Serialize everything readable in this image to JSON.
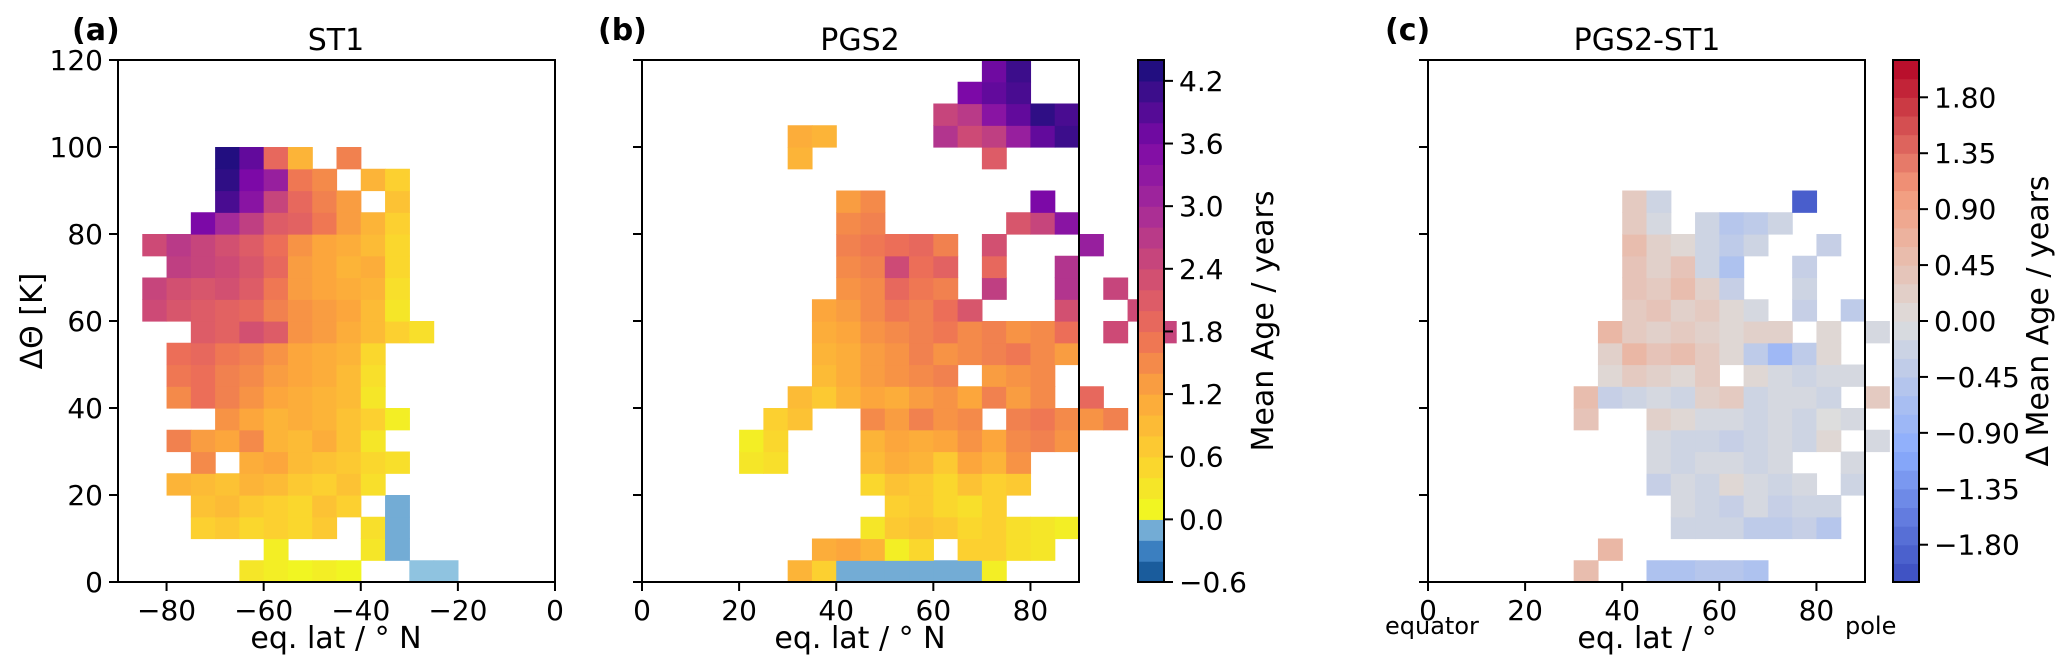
{
  "chart_data": [
    {
      "type": "heatmap",
      "panel_label": "(a)",
      "title": "ST1",
      "xlabel": "eq. lat / ° N",
      "ylabel": "ΔΘ [K]",
      "xlim": [
        -90,
        0
      ],
      "ylim": [
        0,
        120
      ],
      "xticks": [
        -80,
        -60,
        -40,
        -20,
        0
      ],
      "xtick_labels": [
        "−80",
        "−60",
        "−40",
        "−20",
        "0"
      ],
      "yticks": [
        0,
        20,
        40,
        60,
        80,
        100,
        120
      ],
      "ytick_labels": [
        "0",
        "20",
        "40",
        "60",
        "80",
        "100",
        "120"
      ],
      "cell_size": [
        5,
        5
      ],
      "rows": [
        {
          "y": 0,
          "x0": -65,
          "values": [
            0.3,
            0.2,
            0.1,
            0.2,
            0.1,
            null,
            null,
            0.0,
            0.0
          ]
        },
        {
          "y": 5,
          "x0": -60,
          "values": [
            0.2,
            null,
            null,
            null,
            0.3,
            -0.1
          ]
        },
        {
          "y": 10,
          "x0": -75,
          "values": [
            0.6,
            0.7,
            0.5,
            0.6,
            0.5,
            0.7,
            null,
            0.4,
            -0.1
          ]
        },
        {
          "y": 15,
          "x0": -75,
          "values": [
            0.8,
            0.9,
            0.7,
            0.6,
            0.5,
            0.8,
            0.6,
            null,
            -0.1
          ]
        },
        {
          "y": 20,
          "x0": -80,
          "values": [
            1.0,
            0.9,
            0.8,
            1.0,
            0.9,
            0.7,
            0.6,
            0.8,
            0.4
          ]
        },
        {
          "y": 25,
          "x0": -75,
          "values": [
            1.5,
            null,
            1.1,
            1.2,
            0.9,
            0.8,
            0.7,
            0.5,
            0.4
          ]
        },
        {
          "y": 30,
          "x0": -80,
          "values": [
            1.6,
            1.3,
            1.2,
            1.5,
            1.0,
            0.9,
            1.1,
            0.8,
            0.3
          ]
        },
        {
          "y": 35,
          "x0": -75,
          "values": [
            null,
            1.4,
            1.2,
            1.0,
            1.1,
            1.0,
            0.8,
            0.6,
            0.2
          ]
        },
        {
          "y": 40,
          "x0": -80,
          "values": [
            1.5,
            1.8,
            1.6,
            1.4,
            1.2,
            1.1,
            1.0,
            0.9,
            0.3
          ]
        },
        {
          "y": 45,
          "x0": -80,
          "values": [
            1.7,
            1.8,
            1.6,
            1.5,
            1.3,
            1.2,
            1.1,
            0.9,
            0.4
          ]
        },
        {
          "y": 50,
          "x0": -80,
          "values": [
            1.8,
            1.9,
            1.7,
            1.6,
            1.4,
            1.2,
            1.1,
            1.0,
            0.5
          ]
        },
        {
          "y": 55,
          "x0": -75,
          "values": [
            2.1,
            2.0,
            2.3,
            2.1,
            1.4,
            1.3,
            1.1,
            0.9,
            0.6,
            0.4
          ]
        },
        {
          "y": 60,
          "x0": -85,
          "values": [
            2.4,
            2.2,
            2.1,
            2.0,
            1.9,
            1.6,
            1.4,
            1.3,
            1.2,
            0.9,
            0.3
          ]
        },
        {
          "y": 65,
          "x0": -85,
          "values": [
            2.5,
            2.3,
            2.2,
            2.3,
            2.1,
            1.7,
            1.3,
            1.2,
            1.1,
            1.0,
            0.4
          ]
        },
        {
          "y": 70,
          "x0": -80,
          "values": [
            2.6,
            2.5,
            2.4,
            2.2,
            1.9,
            1.3,
            1.2,
            1.0,
            1.1,
            0.5
          ]
        },
        {
          "y": 75,
          "x0": -85,
          "values": [
            2.4,
            2.7,
            2.5,
            2.3,
            2.1,
            1.8,
            1.4,
            1.2,
            1.1,
            0.9,
            0.5
          ]
        },
        {
          "y": 80,
          "x0": -75,
          "values": [
            3.6,
            3.0,
            2.6,
            2.1,
            2.0,
            1.7,
            1.3,
            1.0,
            0.6
          ]
        },
        {
          "y": 85,
          "x0": -70,
          "values": [
            4.0,
            3.4,
            2.5,
            1.9,
            1.6,
            1.3,
            null,
            0.8
          ]
        },
        {
          "y": 90,
          "x0": -70,
          "values": [
            4.2,
            3.6,
            3.2,
            1.7,
            1.5,
            null,
            1.0,
            0.6
          ]
        },
        {
          "y": 95,
          "x0": -70,
          "values": [
            4.3,
            3.8,
            1.9,
            1.0,
            null,
            1.6
          ]
        }
      ]
    },
    {
      "type": "heatmap",
      "panel_label": "(b)",
      "title": "PGS2",
      "xlabel": "eq. lat / ° N",
      "xlim": [
        0,
        90
      ],
      "ylim": [
        0,
        120
      ],
      "xticks": [
        0,
        20,
        40,
        60,
        80
      ],
      "xtick_labels": [
        "0",
        "20",
        "40",
        "60",
        "80"
      ],
      "yticks": [
        0,
        20,
        40,
        60,
        80,
        100,
        120
      ],
      "cell_size": [
        5,
        5
      ],
      "rows": [
        {
          "y": 0,
          "x0": 30,
          "values": [
            1.0,
            0.6,
            -0.1,
            -0.1,
            -0.1,
            -0.1,
            -0.1,
            -0.1,
            0.2
          ]
        },
        {
          "y": 5,
          "x0": 35,
          "values": [
            1.1,
            1.2,
            1.0,
            0.2,
            0.5,
            null,
            0.6,
            0.6,
            0.4,
            0.3
          ]
        },
        {
          "y": 10,
          "x0": 45,
          "values": [
            0.3,
            0.7,
            0.8,
            0.7,
            0.5,
            0.6,
            0.4,
            0.3,
            0.2
          ]
        },
        {
          "y": 15,
          "x0": 50,
          "values": [
            0.6,
            0.7,
            0.5,
            0.4,
            0.6
          ]
        },
        {
          "y": 20,
          "x0": 45,
          "values": [
            0.5,
            0.8,
            0.7,
            0.5,
            0.8,
            0.6,
            0.7
          ]
        },
        {
          "y": 25,
          "x0": 20,
          "values": [
            0.3,
            0.4,
            null,
            null,
            null,
            0.9,
            1.1,
            1.0,
            0.7,
            1.2,
            1.0,
            1.4
          ]
        },
        {
          "y": 30,
          "x0": 20,
          "values": [
            0.2,
            0.5,
            null,
            null,
            null,
            1.0,
            1.2,
            1.1,
            1.2,
            1.4,
            1.2,
            1.5,
            1.6,
            1.4
          ]
        },
        {
          "y": 35,
          "x0": 25,
          "values": [
            0.6,
            0.8,
            null,
            null,
            1.5,
            1.3,
            1.6,
            1.4,
            1.5,
            null,
            1.6,
            1.7,
            1.5,
            1.4,
            1.6
          ]
        },
        {
          "y": 40,
          "x0": 30,
          "values": [
            0.9,
            0.7,
            1.0,
            1.2,
            1.1,
            1.3,
            1.4,
            1.2,
            1.6,
            1.3,
            1.5,
            null,
            1.9
          ]
        },
        {
          "y": 45,
          "x0": 35,
          "values": [
            0.9,
            1.1,
            1.3,
            1.4,
            1.5,
            1.6,
            null,
            1.3,
            1.4,
            1.5
          ]
        },
        {
          "y": 50,
          "x0": 35,
          "values": [
            1.0,
            1.1,
            1.3,
            1.4,
            1.6,
            1.4,
            1.5,
            1.6,
            1.7,
            1.5,
            1.3
          ]
        },
        {
          "y": 55,
          "x0": 35,
          "values": [
            1.1,
            1.2,
            1.4,
            1.5,
            1.6,
            1.7,
            1.5,
            1.6,
            1.4,
            1.5,
            1.8,
            null,
            2.4,
            null,
            2.5
          ]
        },
        {
          "y": 60,
          "x0": 35,
          "values": [
            1.2,
            1.3,
            1.5,
            1.7,
            1.6,
            1.8,
            2.2,
            null,
            null,
            null,
            2.3,
            null,
            null,
            2.4
          ]
        },
        {
          "y": 65,
          "x0": 40,
          "values": [
            1.4,
            1.5,
            1.9,
            1.7,
            1.6,
            null,
            2.6,
            null,
            null,
            2.8,
            null,
            2.5
          ]
        },
        {
          "y": 70,
          "x0": 40,
          "values": [
            1.5,
            1.6,
            2.4,
            1.8,
            2.0,
            null,
            1.9,
            null,
            null,
            2.8
          ]
        },
        {
          "y": 75,
          "x0": 40,
          "values": [
            1.6,
            1.7,
            1.8,
            1.9,
            1.6,
            null,
            2.3,
            null,
            null,
            null,
            3.2
          ]
        },
        {
          "y": 80,
          "x0": 40,
          "values": [
            1.5,
            1.6,
            null,
            null,
            null,
            null,
            null,
            2.2,
            2.5,
            3.4
          ]
        },
        {
          "y": 85,
          "x0": 40,
          "values": [
            1.3,
            1.5,
            null,
            null,
            null,
            null,
            null,
            null,
            3.6
          ]
        },
        {
          "y": 95,
          "x0": 30,
          "values": [
            1.0,
            null,
            null,
            null,
            null,
            null,
            null,
            null,
            2.1
          ]
        },
        {
          "y": 100,
          "x0": 30,
          "values": [
            1.1,
            1.0,
            null,
            null,
            null,
            null,
            2.8,
            2.4,
            2.6,
            3.2,
            3.8,
            4.1
          ]
        },
        {
          "y": 105,
          "x0": 60,
          "values": [
            2.5,
            2.7,
            3.4,
            3.8,
            4.2,
            4.0
          ]
        },
        {
          "y": 110,
          "x0": 65,
          "values": [
            3.6,
            3.8,
            4.0
          ]
        },
        {
          "y": 115,
          "x0": 70,
          "values": [
            3.7,
            4.1
          ]
        }
      ]
    },
    {
      "type": "heatmap",
      "panel_label": "(c)",
      "title": "PGS2-ST1",
      "xlabel": "eq. lat / °",
      "xlim": [
        0,
        90
      ],
      "ylim": [
        0,
        120
      ],
      "xticks": [
        0,
        20,
        40,
        60,
        80
      ],
      "xtick_labels": [
        "0",
        "20",
        "40",
        "60",
        "80"
      ],
      "yticks": [
        0,
        20,
        40,
        60,
        80,
        100,
        120
      ],
      "annotations": [
        "equator",
        "pole"
      ],
      "cell_size": [
        5,
        5
      ],
      "rows": [
        {
          "y": 0,
          "x0": 30,
          "values": [
            0.5,
            null,
            null,
            -0.6,
            -0.6,
            -0.5,
            -0.5,
            -0.6
          ]
        },
        {
          "y": 5,
          "x0": 35,
          "values": [
            0.6
          ]
        },
        {
          "y": 10,
          "x0": 50,
          "values": [
            -0.2,
            -0.2,
            -0.2,
            -0.4,
            -0.4,
            -0.3,
            -0.5
          ]
        },
        {
          "y": 15,
          "x0": 50,
          "values": [
            -0.1,
            -0.2,
            -0.3,
            -0.1,
            -0.3,
            -0.2,
            -0.2
          ]
        },
        {
          "y": 20,
          "x0": 45,
          "values": [
            -0.3,
            -0.1,
            -0.2,
            0.1,
            -0.1,
            -0.2,
            -0.1,
            null,
            -0.2
          ]
        },
        {
          "y": 25,
          "x0": 45,
          "values": [
            -0.1,
            -0.2,
            -0.1,
            -0.1,
            -0.2,
            -0.1,
            null,
            null,
            -0.1
          ]
        },
        {
          "y": 30,
          "x0": 45,
          "values": [
            -0.1,
            -0.2,
            -0.2,
            -0.3,
            -0.2,
            -0.1,
            -0.2,
            0.1,
            null,
            -0.1
          ]
        },
        {
          "y": 35,
          "x0": 30,
          "values": [
            0.4,
            null,
            null,
            0.2,
            0.1,
            -0.1,
            -0.1,
            -0.2,
            -0.1,
            -0.2,
            0.0,
            -0.1
          ]
        },
        {
          "y": 40,
          "x0": 30,
          "values": [
            0.5,
            -0.3,
            -0.2,
            -0.1,
            -0.2,
            0.2,
            0.3,
            -0.2,
            -0.1,
            -0.1,
            -0.2,
            null,
            0.3
          ]
        },
        {
          "y": 45,
          "x0": 35,
          "values": [
            0.1,
            0.3,
            0.2,
            0.1,
            0.3,
            null,
            0.1,
            -0.1,
            -0.2,
            -0.1,
            -0.1
          ]
        },
        {
          "y": 50,
          "x0": 35,
          "values": [
            0.2,
            0.6,
            0.4,
            0.5,
            0.3,
            0.1,
            -0.4,
            -0.8,
            -0.4,
            0.1
          ]
        },
        {
          "y": 55,
          "x0": 35,
          "values": [
            0.6,
            0.3,
            0.2,
            0.3,
            0.2,
            0.1,
            0.2,
            0.2,
            null,
            0.1,
            null,
            -0.1
          ]
        },
        {
          "y": 60,
          "x0": 40,
          "values": [
            0.3,
            0.4,
            0.2,
            0.3,
            0.1,
            -0.1,
            null,
            -0.3,
            null,
            -0.4
          ]
        },
        {
          "y": 65,
          "x0": 40,
          "values": [
            0.4,
            0.3,
            0.5,
            0.2,
            -0.3,
            null,
            null,
            -0.2
          ]
        },
        {
          "y": 70,
          "x0": 40,
          "values": [
            0.4,
            0.2,
            0.4,
            -0.2,
            -0.6,
            null,
            null,
            -0.3
          ]
        },
        {
          "y": 75,
          "x0": 40,
          "values": [
            0.5,
            0.2,
            0.1,
            -0.2,
            -0.4,
            -0.2,
            null,
            null,
            -0.3
          ]
        },
        {
          "y": 80,
          "x0": 40,
          "values": [
            0.3,
            -0.1,
            null,
            -0.2,
            -0.5,
            -0.4,
            -0.2
          ]
        },
        {
          "y": 85,
          "x0": 40,
          "values": [
            0.3,
            -0.2,
            null,
            null,
            null,
            null,
            null,
            -1.9
          ]
        }
      ]
    }
  ],
  "colorbar_age": {
    "label": "Mean Age / years",
    "range": [
      -0.6,
      4.4
    ],
    "ticks": [
      -0.6,
      0.0,
      0.6,
      1.2,
      1.8,
      2.4,
      3.0,
      3.6,
      4.2
    ],
    "tick_labels": [
      "−0.6",
      "0.0",
      "0.6",
      "1.2",
      "1.8",
      "2.4",
      "3.0",
      "3.6",
      "4.2"
    ],
    "colormap": {
      "name": "plasma_r with blues below zero",
      "stops": [
        {
          "value": -0.6,
          "color": "#0a4a8a"
        },
        {
          "value": -0.3,
          "color": "#3b7fc0"
        },
        {
          "value": 0.0,
          "color": "#8fc3e0"
        },
        {
          "value": 0.05,
          "color": "#f0f921"
        },
        {
          "value": 0.6,
          "color": "#fcd030"
        },
        {
          "value": 1.2,
          "color": "#fca63c"
        },
        {
          "value": 1.8,
          "color": "#ec6e58"
        },
        {
          "value": 2.4,
          "color": "#cd4a76"
        },
        {
          "value": 3.0,
          "color": "#a42a9a"
        },
        {
          "value": 3.6,
          "color": "#7c09a7"
        },
        {
          "value": 4.4,
          "color": "#150f7a"
        }
      ]
    }
  },
  "colorbar_diff": {
    "label": "Δ Mean Age / years",
    "range": [
      -2.1,
      2.1
    ],
    "ticks": [
      -1.8,
      -1.35,
      -0.9,
      -0.45,
      0.0,
      0.45,
      0.9,
      1.35,
      1.8
    ],
    "tick_labels": [
      "−1.80",
      "−1.35",
      "−0.90",
      "−0.45",
      "0.00",
      "0.45",
      "0.90",
      "1.35",
      "1.80"
    ],
    "colormap": {
      "name": "coolwarm",
      "stops": [
        {
          "value": -2.1,
          "color": "#3a4cc0"
        },
        {
          "value": -1.05,
          "color": "#8badfd"
        },
        {
          "value": 0.0,
          "color": "#dddddd"
        },
        {
          "value": 1.05,
          "color": "#f49a7b"
        },
        {
          "value": 2.1,
          "color": "#b40426"
        }
      ]
    }
  }
}
